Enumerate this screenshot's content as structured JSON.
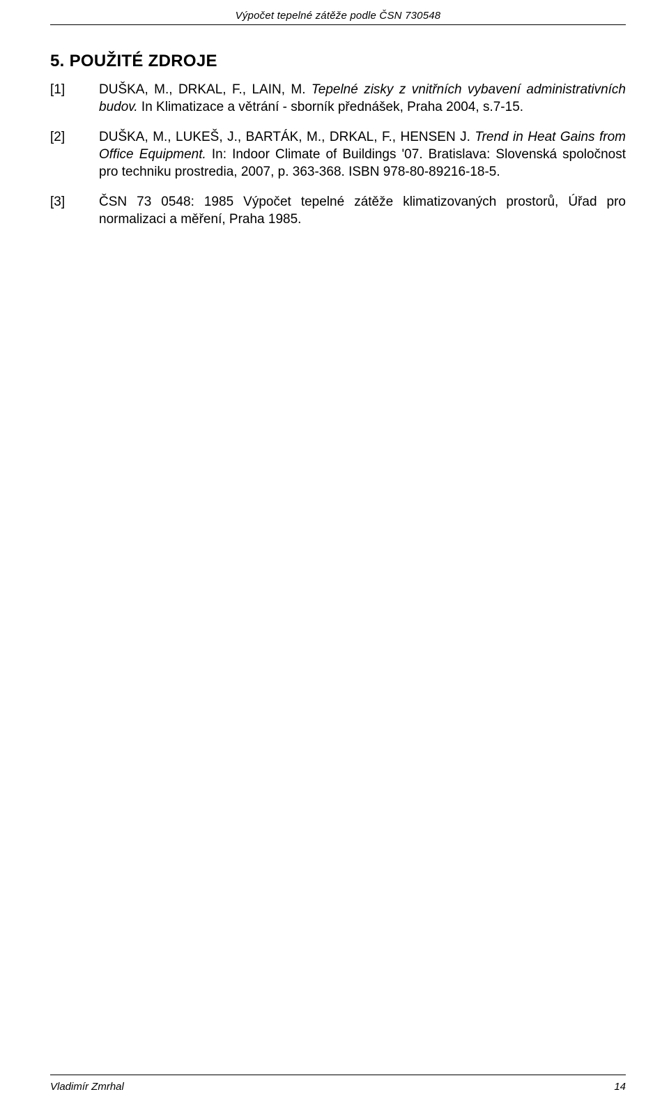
{
  "header": {
    "running_title": "Výpočet tepelné zátěže podle ČSN 730548"
  },
  "section": {
    "title": "5. POUŽITÉ ZDROJE"
  },
  "references": [
    {
      "label": "[1]",
      "pre": "DUŠKA, M., DRKAL, F., LAIN, M. ",
      "italic": "Tepelné zisky z vnitřních vybavení administrativních budov.",
      "post": " In Klimatizace a větrání - sborník přednášek, Praha 2004, s.7-15."
    },
    {
      "label": "[2]",
      "pre": "DUŠKA, M., LUKEŠ, J., BARTÁK, M., DRKAL, F., HENSEN J. ",
      "italic": "Trend in Heat Gains from Office Equipment.",
      "post": " In: Indoor Climate of Buildings '07. Bratislava: Slovenská spoločnost pro techniku prostredia, 2007, p. 363-368. ISBN 978-80-89216-18-5."
    },
    {
      "label": "[3]",
      "pre": "ČSN 73 0548: 1985 Výpočet tepelné zátěže klimatizovaných prostorů, Úřad pro normalizaci a měření, Praha 1985.",
      "italic": "",
      "post": ""
    }
  ],
  "footer": {
    "author": "Vladimír Zmrhal",
    "page_number": "14"
  }
}
